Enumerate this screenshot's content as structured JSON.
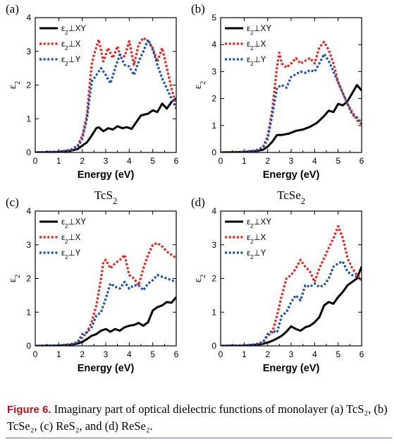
{
  "caption": {
    "label": "Figure 6.",
    "text": "Imaginary part of optical dielectric functions of monolayer (a) TcS₂, (b) TcSe₂, (c) ReS₂, and (d) ReSe₂."
  },
  "chart_data": [
    {
      "type": "line",
      "panel": "(a)",
      "material": "TcS",
      "xlabel": "Energy (eV)",
      "ylabel": "ε2",
      "xlim": [
        0,
        6
      ],
      "ylim": [
        0,
        4
      ],
      "xticks": [
        0,
        1,
        2,
        3,
        4,
        5,
        6
      ],
      "yticks": [
        0,
        1,
        2,
        3,
        4
      ],
      "series": [
        {
          "name": "ε2⊥XY",
          "color": "#000000",
          "dash": "solid",
          "x": [
            0,
            1,
            1.5,
            1.8,
            2,
            2.2,
            2.4,
            2.6,
            2.7,
            2.9,
            3.1,
            3.3,
            3.5,
            3.7,
            3.9,
            4.1,
            4.2,
            4.5,
            4.8,
            5.0,
            5.2,
            5.4,
            5.6,
            5.8,
            6.0
          ],
          "y": [
            0,
            0.02,
            0.05,
            0.1,
            0.2,
            0.3,
            0.5,
            0.72,
            0.75,
            0.63,
            0.72,
            0.68,
            0.78,
            0.72,
            0.75,
            0.7,
            0.8,
            1.1,
            1.15,
            1.25,
            1.2,
            1.45,
            1.3,
            1.5,
            1.6
          ]
        },
        {
          "name": "ε2⊥X",
          "color": "#e8211f",
          "dash": "dot",
          "x": [
            0,
            1,
            1.5,
            1.8,
            2,
            2.2,
            2.3,
            2.4,
            2.5,
            2.7,
            2.9,
            3.1,
            3.3,
            3.5,
            3.6,
            3.8,
            4.0,
            4.2,
            4.4,
            4.6,
            4.8,
            5.0,
            5.2,
            5.4,
            5.6,
            5.8,
            6.0
          ],
          "y": [
            0,
            0.02,
            0.08,
            0.2,
            0.5,
            1.1,
            1.9,
            2.6,
            2.9,
            3.35,
            2.7,
            3.1,
            2.8,
            3.15,
            2.9,
            2.85,
            3.3,
            2.6,
            3.2,
            3.4,
            3.3,
            3.1,
            2.7,
            3.1,
            2.5,
            1.9,
            1.4
          ]
        },
        {
          "name": "ε2⊥Y",
          "color": "#1b52a6",
          "dash": "dot",
          "x": [
            0,
            1,
            1.5,
            1.8,
            2,
            2.2,
            2.4,
            2.6,
            2.8,
            3.0,
            3.2,
            3.4,
            3.6,
            3.8,
            4.0,
            4.2,
            4.4,
            4.6,
            4.8,
            5.0,
            5.2,
            5.4,
            5.6,
            5.8,
            6.0
          ],
          "y": [
            0,
            0.02,
            0.06,
            0.15,
            0.4,
            1.0,
            2.1,
            2.3,
            2.5,
            2.3,
            2.05,
            2.5,
            2.9,
            2.6,
            2.55,
            2.3,
            2.7,
            3.0,
            3.35,
            3.05,
            2.6,
            2.2,
            1.9,
            1.6,
            1.3
          ]
        }
      ]
    },
    {
      "type": "line",
      "panel": "(b)",
      "material": "TcSe",
      "xlabel": "Energy (eV)",
      "ylabel": "ε2",
      "xlim": [
        0,
        6
      ],
      "ylim": [
        0,
        5
      ],
      "xticks": [
        0,
        1,
        2,
        3,
        4,
        5,
        6
      ],
      "yticks": [
        0,
        1,
        2,
        3,
        4,
        5
      ],
      "series": [
        {
          "name": "ε2⊥XY",
          "color": "#000000",
          "dash": "solid",
          "x": [
            0,
            1,
            1.5,
            1.8,
            2,
            2.2,
            2.4,
            2.6,
            2.9,
            3.2,
            3.5,
            3.8,
            4.1,
            4.4,
            4.6,
            4.8,
            5.0,
            5.2,
            5.4,
            5.6,
            5.8,
            6.0
          ],
          "y": [
            0,
            0.02,
            0.05,
            0.1,
            0.22,
            0.4,
            0.65,
            0.65,
            0.7,
            0.8,
            0.85,
            0.95,
            1.1,
            1.35,
            1.55,
            1.5,
            1.8,
            1.75,
            1.9,
            2.2,
            2.5,
            2.3
          ]
        },
        {
          "name": "ε2⊥X",
          "color": "#e8211f",
          "dash": "dot",
          "x": [
            0,
            1,
            1.5,
            1.8,
            2,
            2.2,
            2.4,
            2.5,
            2.6,
            2.8,
            3.0,
            3.2,
            3.4,
            3.6,
            3.8,
            4.0,
            4.2,
            4.4,
            4.6,
            4.8,
            5.0,
            5.2,
            5.4,
            5.6,
            5.8,
            6.0
          ],
          "y": [
            0,
            0.02,
            0.08,
            0.2,
            0.6,
            1.6,
            3.2,
            3.7,
            3.3,
            3.15,
            3.3,
            3.5,
            3.3,
            3.4,
            3.5,
            3.3,
            3.9,
            4.1,
            3.8,
            3.3,
            2.6,
            2.2,
            1.8,
            1.5,
            1.2,
            1.05
          ]
        },
        {
          "name": "ε2⊥Y",
          "color": "#1b52a6",
          "dash": "dot",
          "x": [
            0,
            1,
            1.5,
            1.8,
            2,
            2.2,
            2.4,
            2.6,
            2.8,
            3.0,
            3.2,
            3.4,
            3.6,
            3.8,
            4.0,
            4.2,
            4.4,
            4.6,
            4.8,
            5.0,
            5.2,
            5.4,
            5.6,
            5.8,
            6.0
          ],
          "y": [
            0,
            0.02,
            0.06,
            0.18,
            0.5,
            1.4,
            2.4,
            2.5,
            2.4,
            2.8,
            2.9,
            3.0,
            2.95,
            3.05,
            3.0,
            3.3,
            3.65,
            3.4,
            3.0,
            2.6,
            2.2,
            1.8,
            1.4,
            1.3,
            1.1
          ]
        }
      ]
    },
    {
      "type": "line",
      "panel": "(c)",
      "material": "ReS",
      "xlabel": "Energy (eV)",
      "ylabel": "ε2",
      "xlim": [
        0,
        6
      ],
      "ylim": [
        0,
        4
      ],
      "xticks": [
        0,
        1,
        2,
        3,
        4,
        5,
        6
      ],
      "yticks": [
        0,
        1,
        2,
        3,
        4
      ],
      "series": [
        {
          "name": "ε2⊥XY",
          "color": "#000000",
          "dash": "solid",
          "x": [
            0,
            1,
            1.5,
            1.8,
            2,
            2.2,
            2.4,
            2.6,
            2.8,
            3.0,
            3.2,
            3.4,
            3.6,
            3.8,
            4.0,
            4.2,
            4.4,
            4.6,
            4.8,
            5.0,
            5.2,
            5.4,
            5.6,
            5.8,
            6.0
          ],
          "y": [
            0,
            0.01,
            0.03,
            0.07,
            0.12,
            0.2,
            0.3,
            0.35,
            0.45,
            0.5,
            0.42,
            0.5,
            0.45,
            0.55,
            0.6,
            0.62,
            0.68,
            0.6,
            0.7,
            1.05,
            1.15,
            1.2,
            1.3,
            1.28,
            1.45
          ]
        },
        {
          "name": "ε2⊥X",
          "color": "#e8211f",
          "dash": "dot",
          "x": [
            0,
            1,
            1.5,
            1.8,
            2,
            2.2,
            2.4,
            2.6,
            2.8,
            2.9,
            3.0,
            3.2,
            3.4,
            3.6,
            3.8,
            4.0,
            4.2,
            4.4,
            4.6,
            4.8,
            5.0,
            5.2,
            5.4,
            5.6,
            5.8,
            6.0
          ],
          "y": [
            0,
            0.01,
            0.05,
            0.12,
            0.25,
            0.4,
            0.7,
            1.2,
            2.0,
            2.5,
            2.55,
            2.3,
            2.45,
            2.55,
            2.7,
            2.1,
            2.0,
            1.8,
            2.3,
            2.7,
            3.0,
            3.05,
            2.95,
            2.8,
            2.7,
            2.6
          ]
        },
        {
          "name": "ε2⊥Y",
          "color": "#1b52a6",
          "dash": "dot",
          "x": [
            0,
            1,
            1.5,
            1.8,
            2,
            2.2,
            2.4,
            2.6,
            2.8,
            3.0,
            3.2,
            3.4,
            3.6,
            3.8,
            4.0,
            4.2,
            4.4,
            4.6,
            4.8,
            5.0,
            5.2,
            5.4,
            5.6,
            5.8,
            6.0
          ],
          "y": [
            0,
            0.01,
            0.04,
            0.1,
            0.35,
            0.4,
            0.55,
            0.9,
            1.0,
            1.4,
            1.85,
            1.75,
            1.7,
            1.9,
            1.7,
            1.8,
            1.8,
            1.65,
            1.85,
            1.95,
            2.1,
            2.05,
            2.0,
            1.95,
            1.9
          ]
        }
      ]
    },
    {
      "type": "line",
      "panel": "(d)",
      "material": "ReSe",
      "xlabel": "Energy (eV)",
      "ylabel": "ε2",
      "xlim": [
        0,
        6
      ],
      "ylim": [
        0,
        4
      ],
      "xticks": [
        0,
        1,
        2,
        3,
        4,
        5,
        6
      ],
      "yticks": [
        0,
        1,
        2,
        3,
        4
      ],
      "series": [
        {
          "name": "ε2⊥XY",
          "color": "#000000",
          "dash": "solid",
          "x": [
            0,
            1,
            1.5,
            1.8,
            2,
            2.2,
            2.4,
            2.6,
            2.8,
            3.0,
            3.2,
            3.4,
            3.6,
            3.8,
            4.0,
            4.2,
            4.4,
            4.6,
            4.8,
            5.0,
            5.2,
            5.4,
            5.6,
            5.8,
            6.0
          ],
          "y": [
            0,
            0.01,
            0.03,
            0.06,
            0.1,
            0.15,
            0.22,
            0.3,
            0.42,
            0.58,
            0.5,
            0.45,
            0.55,
            0.6,
            0.7,
            0.85,
            1.2,
            1.3,
            1.25,
            1.45,
            1.6,
            1.8,
            1.9,
            2.0,
            2.35
          ]
        },
        {
          "name": "ε2⊥X",
          "color": "#e8211f",
          "dash": "dot",
          "x": [
            0,
            1,
            1.5,
            1.8,
            2,
            2.2,
            2.4,
            2.6,
            2.8,
            3.0,
            3.2,
            3.4,
            3.6,
            3.8,
            4.0,
            4.2,
            4.4,
            4.6,
            4.8,
            5.0,
            5.2,
            5.4,
            5.6,
            5.8,
            6.0
          ],
          "y": [
            0,
            0.01,
            0.05,
            0.12,
            0.3,
            0.4,
            0.9,
            1.5,
            2.0,
            2.1,
            2.3,
            2.55,
            2.35,
            2.2,
            1.9,
            2.3,
            2.6,
            2.9,
            3.2,
            3.55,
            3.2,
            2.6,
            2.3,
            2.1,
            1.95
          ]
        },
        {
          "name": "ε2⊥Y",
          "color": "#1b52a6",
          "dash": "dot",
          "x": [
            0,
            1,
            1.5,
            1.8,
            2,
            2.2,
            2.4,
            2.6,
            2.8,
            3.0,
            3.2,
            3.4,
            3.6,
            3.8,
            4.0,
            4.2,
            4.4,
            4.6,
            4.8,
            5.0,
            5.2,
            5.4,
            5.6,
            5.8,
            6.0
          ],
          "y": [
            0,
            0.01,
            0.04,
            0.1,
            0.35,
            0.45,
            0.4,
            0.9,
            1.0,
            1.3,
            1.5,
            1.35,
            1.8,
            1.75,
            1.85,
            1.75,
            1.8,
            2.0,
            2.35,
            2.45,
            2.5,
            2.2,
            2.1,
            2.05,
            1.95
          ]
        }
      ]
    }
  ]
}
